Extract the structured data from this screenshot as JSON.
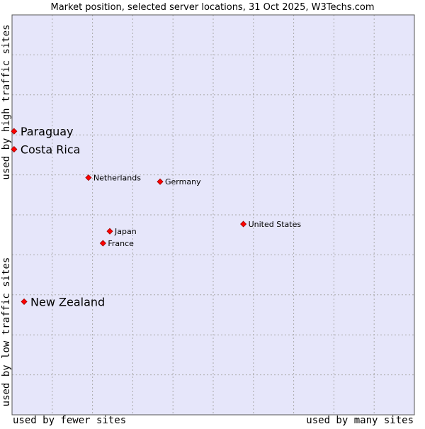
{
  "chart_data": {
    "type": "scatter",
    "title": "Market position, selected server locations, 31 Oct 2025, W3Techs.com",
    "xlabel_left": "used by fewer sites",
    "xlabel_right": "used by many sites",
    "ylabel_low": "used by low traffic sites",
    "ylabel_high": "used by high traffic sites",
    "xlim": [
      0,
      100
    ],
    "ylim": [
      0,
      100
    ],
    "grid": true,
    "x_grid_lines": 10,
    "y_grid_lines": 10,
    "colors": {
      "plot_background": "#e6e6fa",
      "grid": "#aaaaaa",
      "border": "#555555",
      "marker": "#ff0000",
      "marker_stroke": "#990000",
      "text": "#000000"
    },
    "points": [
      {
        "name": "Paraguay",
        "x": 0.5,
        "y": 70.9,
        "highlight": true
      },
      {
        "name": "Costa Rica",
        "x": 0.5,
        "y": 66.4,
        "highlight": true
      },
      {
        "name": "Netherlands",
        "x": 19.0,
        "y": 59.3,
        "highlight": false
      },
      {
        "name": "Germany",
        "x": 36.8,
        "y": 58.3,
        "highlight": false
      },
      {
        "name": "United States",
        "x": 57.5,
        "y": 47.7,
        "highlight": false
      },
      {
        "name": "Japan",
        "x": 24.3,
        "y": 45.9,
        "highlight": false
      },
      {
        "name": "France",
        "x": 22.6,
        "y": 42.9,
        "highlight": false
      },
      {
        "name": "New Zealand",
        "x": 3.0,
        "y": 28.3,
        "highlight": true
      }
    ]
  }
}
